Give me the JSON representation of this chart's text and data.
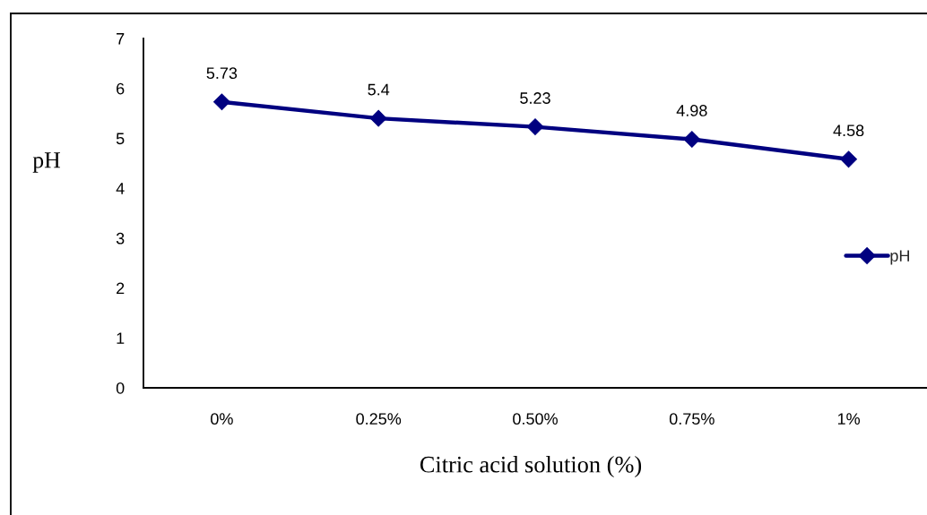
{
  "chart_data": {
    "type": "line",
    "xlabel": "Citric acid solution (%)",
    "ylabel": "pH",
    "categories": [
      "0%",
      "0.25%",
      "0.50%",
      "0.75%",
      "1%"
    ],
    "series": [
      {
        "name": "pH",
        "color": "#000080",
        "values": [
          5.73,
          5.4,
          5.23,
          4.98,
          4.58
        ]
      }
    ],
    "ylim": [
      0,
      7
    ],
    "yticks": [
      0,
      1,
      2,
      3,
      4,
      5,
      6,
      7
    ],
    "grid": false,
    "legend": "right",
    "marker": "diamond",
    "line_style": "solid",
    "data_labels": true
  }
}
